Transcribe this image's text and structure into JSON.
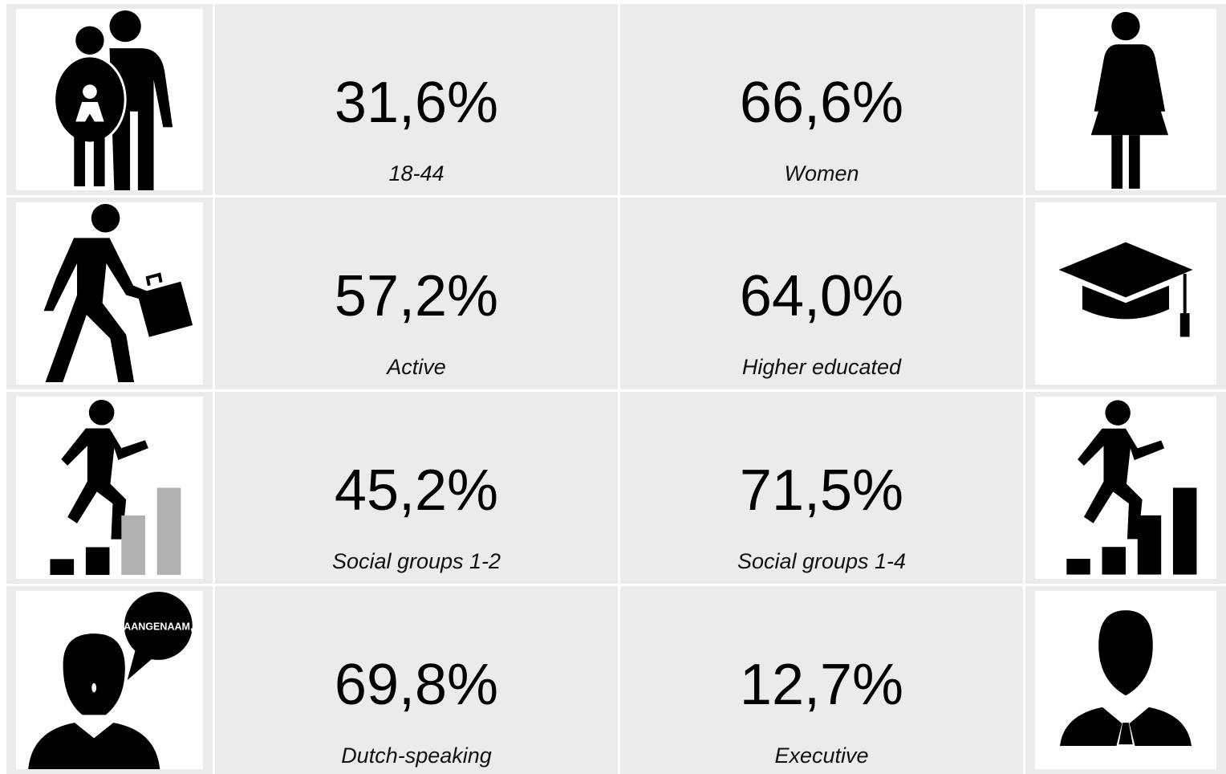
{
  "rows": [
    {
      "left": {
        "value": "31,6%",
        "label": "18-44"
      },
      "right": {
        "value": "66,6%",
        "label": "Women"
      }
    },
    {
      "left": {
        "value": "57,2%",
        "label": "Active"
      },
      "right": {
        "value": "64,0%",
        "label": "Higher educated"
      }
    },
    {
      "left": {
        "value": "45,2%",
        "label": "Social groups 1-2"
      },
      "right": {
        "value": "71,5%",
        "label": "Social groups 1-4"
      }
    },
    {
      "left": {
        "value": "69,8%",
        "label": "Dutch-speaking"
      },
      "right": {
        "value": "12,7%",
        "label": "Executive"
      }
    }
  ],
  "speech_bubble": "AANGENAAM,"
}
